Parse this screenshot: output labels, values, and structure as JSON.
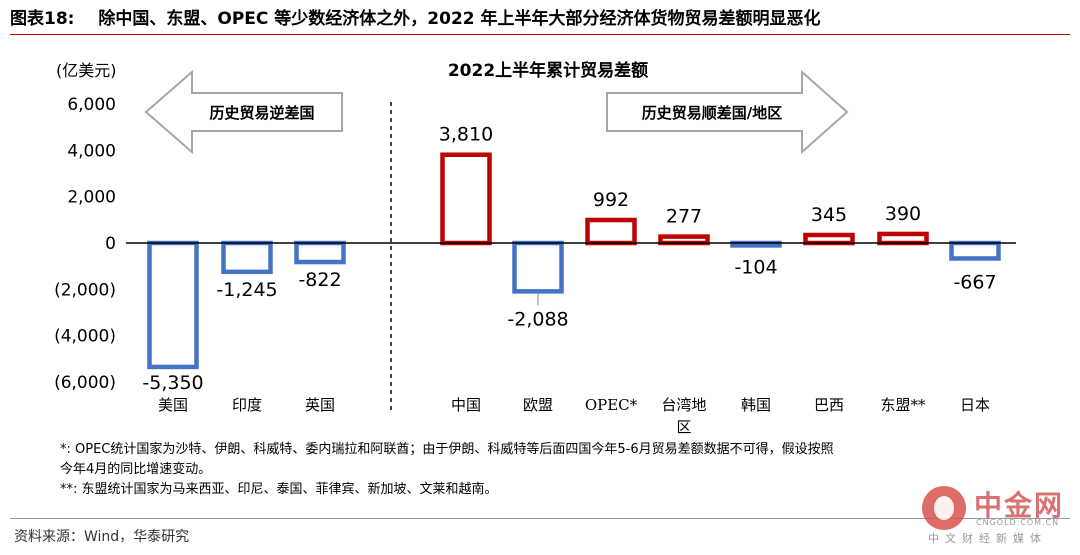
{
  "header": {
    "figure_label": "图表18:",
    "title": "除中国、东盟、OPEC 等少数经济体之外，2022 年上半年大部分经济体货物贸易差额明显恶化"
  },
  "chart_data": {
    "type": "bar",
    "title": "2022上半年累计贸易差额",
    "unit_label": "(亿美元)",
    "ylim": [
      -6000,
      6000
    ],
    "yticks": [
      6000,
      4000,
      2000,
      0,
      -2000,
      -4000,
      -6000
    ],
    "ytick_labels": [
      "6,000",
      "4,000",
      "2,000",
      "0",
      "(2,000)",
      "(4,000)",
      "(6,000)"
    ],
    "categories": [
      "美国",
      "印度",
      "英国",
      "中国",
      "欧盟",
      "OPEC*",
      "台湾地区",
      "韩国",
      "巴西",
      "东盟**",
      "日本"
    ],
    "values": [
      -5350,
      -1245,
      -822,
      3810,
      -2088,
      992,
      277,
      -104,
      345,
      390,
      -667
    ],
    "value_labels": [
      "-5,350",
      "-1,245",
      "-822",
      "3,810",
      "-2,088",
      "992",
      "277",
      "-104",
      "345",
      "390",
      "-667"
    ],
    "colors": {
      "positive": "#c00000",
      "negative": "#4472c4"
    },
    "arrow_left_label": "历史贸易逆差国",
    "arrow_right_label": "历史贸易顺差国/地区"
  },
  "notes": [
    "*: OPEC统计国家为沙特、伊朗、科威特、委内瑞拉和阿联酋；由于伊朗、科威特等后面四国今年5-6月贸易差额数据不可得，假设按照",
    "今年4月的同比增速变动。",
    "**: 东盟统计国家为马来西亚、印尼、泰国、菲律宾、新加坡、文莱和越南。"
  ],
  "source": "资料来源：Wind，华泰研究",
  "watermark": {
    "name": "中金网",
    "url": "CNGOLD.COM.CN",
    "subtitle": "中文财经新媒体"
  }
}
